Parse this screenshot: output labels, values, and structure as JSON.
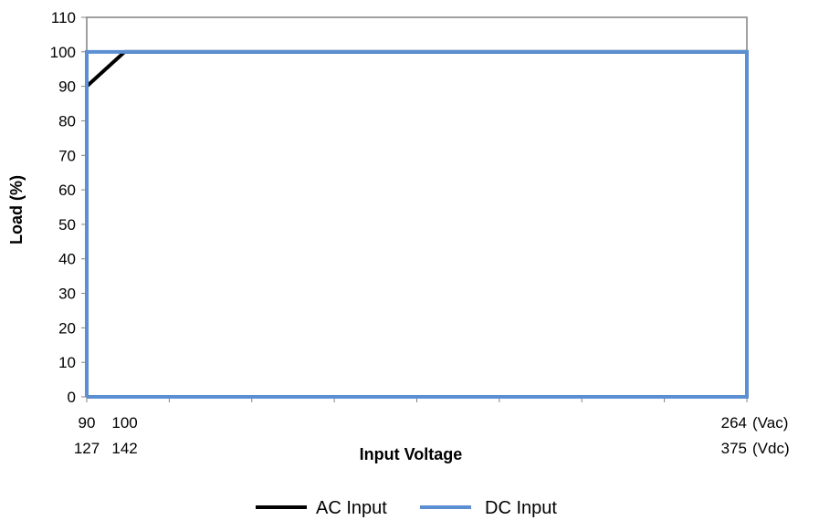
{
  "chart_data": {
    "type": "line",
    "xlabel": "Input Voltage",
    "ylabel": "Load (%)",
    "ylim": [
      0,
      110
    ],
    "yticks": [
      0,
      10,
      20,
      30,
      40,
      50,
      60,
      70,
      80,
      90,
      100,
      110
    ],
    "xlim": [
      90,
      264
    ],
    "x_tick_labels": [
      {
        "vac": "90",
        "vdc": "127"
      },
      {
        "vac": "100",
        "vdc": "142"
      },
      {
        "vac": "264",
        "vdc": "375"
      }
    ],
    "x_unit_labels": {
      "vac": "(Vac)",
      "vdc": "(Vdc)"
    },
    "grid": false,
    "legend_position": "bottom",
    "series": [
      {
        "name": "AC Input",
        "color": "#000000",
        "x": [
          90,
          100,
          264
        ],
        "y": [
          90,
          100,
          100
        ]
      },
      {
        "name": "DC Input",
        "color": "#5b8fd2",
        "x": [
          90,
          90,
          264,
          264,
          90
        ],
        "y": [
          0,
          100,
          100,
          0,
          0
        ]
      }
    ]
  }
}
